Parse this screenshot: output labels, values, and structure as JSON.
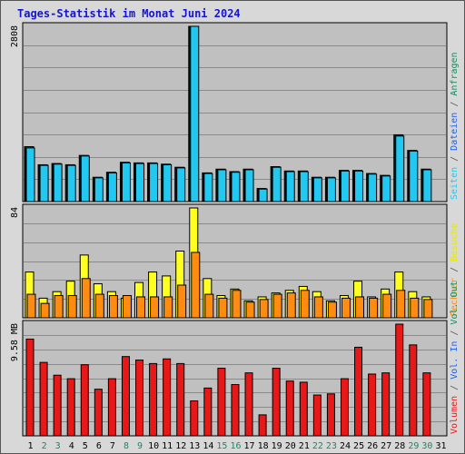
{
  "title": "Tages-Statistik im Monat Juni 2024",
  "chart_data": [
    {
      "type": "bar",
      "panel": "top",
      "ymax_label": "2808",
      "ylim": [
        0,
        2808
      ],
      "grid": true,
      "categories": [
        "1",
        "2",
        "3",
        "4",
        "5",
        "6",
        "7",
        "8",
        "9",
        "10",
        "11",
        "12",
        "13",
        "14",
        "15",
        "16",
        "17",
        "18",
        "19",
        "20",
        "21",
        "22",
        "23",
        "24",
        "25",
        "26",
        "27",
        "28",
        "29",
        "30",
        "31"
      ],
      "series": [
        {
          "name": "Anfragen",
          "color": "#1a8a5e",
          "values": [
            880,
            590,
            610,
            590,
            740,
            390,
            470,
            630,
            620,
            620,
            600,
            550,
            2808,
            460,
            520,
            480,
            520,
            210,
            560,
            490,
            490,
            390,
            390,
            500,
            500,
            450,
            420,
            1070,
            820,
            520,
            0
          ]
        },
        {
          "name": "Dateien",
          "color": "#1e5fe0",
          "values": [
            860,
            580,
            600,
            580,
            730,
            380,
            460,
            620,
            610,
            610,
            590,
            540,
            2808,
            450,
            510,
            470,
            510,
            200,
            550,
            480,
            480,
            380,
            380,
            490,
            490,
            440,
            410,
            1050,
            810,
            510,
            0
          ]
        },
        {
          "name": "Seiten",
          "color": "#22c8f0",
          "values": [
            860,
            580,
            600,
            580,
            730,
            380,
            460,
            620,
            610,
            610,
            590,
            540,
            2808,
            450,
            510,
            470,
            510,
            200,
            550,
            480,
            480,
            380,
            380,
            490,
            490,
            440,
            410,
            1050,
            810,
            510,
            0
          ]
        }
      ]
    },
    {
      "type": "bar",
      "panel": "middle",
      "ymax_label": "84",
      "ylim": [
        0,
        84
      ],
      "grid": true,
      "categories": [
        "1",
        "2",
        "3",
        "4",
        "5",
        "6",
        "7",
        "8",
        "9",
        "10",
        "11",
        "12",
        "13",
        "14",
        "15",
        "16",
        "17",
        "18",
        "19",
        "20",
        "21",
        "22",
        "23",
        "24",
        "25",
        "26",
        "27",
        "28",
        "29",
        "30",
        "31"
      ],
      "series": [
        {
          "name": "Besuche",
          "color": "#ffff20",
          "values": [
            35,
            15,
            20,
            28,
            48,
            26,
            20,
            15,
            27,
            35,
            32,
            51,
            84,
            30,
            17,
            22,
            13,
            16,
            19,
            21,
            24,
            20,
            13,
            17,
            28,
            16,
            22,
            35,
            20,
            16,
            0
          ]
        },
        {
          "name": "Rechner",
          "color": "#ff8c10",
          "values": [
            18,
            11,
            17,
            17,
            30,
            18,
            17,
            17,
            16,
            16,
            16,
            25,
            50,
            18,
            15,
            21,
            12,
            14,
            18,
            19,
            21,
            16,
            12,
            15,
            16,
            15,
            18,
            21,
            15,
            14,
            0
          ]
        }
      ]
    },
    {
      "type": "bar",
      "panel": "bottom",
      "ymax_label": "9.58 MB",
      "ylim": [
        0,
        9.58
      ],
      "grid": true,
      "categories": [
        "1",
        "2",
        "3",
        "4",
        "5",
        "6",
        "7",
        "8",
        "9",
        "10",
        "11",
        "12",
        "13",
        "14",
        "15",
        "16",
        "17",
        "18",
        "19",
        "20",
        "21",
        "22",
        "23",
        "24",
        "25",
        "26",
        "27",
        "28",
        "29",
        "30",
        "31"
      ],
      "series": [
        {
          "name": "Volumen",
          "color": "#e81818",
          "values": [
            8.3,
            6.3,
            5.2,
            4.9,
            6.1,
            4.0,
            4.9,
            6.8,
            6.5,
            6.2,
            6.6,
            6.2,
            3.0,
            4.1,
            5.8,
            4.4,
            5.4,
            1.8,
            5.8,
            4.7,
            4.6,
            3.5,
            3.6,
            4.9,
            7.6,
            5.3,
            5.4,
            9.58,
            7.8,
            5.4,
            0
          ]
        }
      ]
    }
  ],
  "x_labels": [
    "1",
    "2",
    "3",
    "4",
    "5",
    "6",
    "7",
    "8",
    "9",
    "10",
    "11",
    "12",
    "13",
    "14",
    "15",
    "16",
    "17",
    "18",
    "19",
    "20",
    "21",
    "22",
    "23",
    "24",
    "25",
    "26",
    "27",
    "28",
    "29",
    "30",
    "31"
  ],
  "x_label_colors": [
    "#000",
    "#1a8a5e",
    "#1a8a5e",
    "#000",
    "#000",
    "#000",
    "#000",
    "#1a8a5e",
    "#1a8a5e",
    "#000",
    "#000",
    "#000",
    "#000",
    "#000",
    "#1a8a5e",
    "#1a8a5e",
    "#000",
    "#000",
    "#000",
    "#000",
    "#000",
    "#1a8a5e",
    "#1a8a5e",
    "#000",
    "#000",
    "#000",
    "#000",
    "#000",
    "#1a8a5e",
    "#1a8a5e",
    "#000"
  ],
  "right_labels": {
    "top": [
      {
        "text": "Seiten",
        "color": "#22c8f0"
      },
      {
        "text": " / ",
        "color": "#555555"
      },
      {
        "text": "Dateien",
        "color": "#1e5fe0"
      },
      {
        "text": " / ",
        "color": "#555555"
      },
      {
        "text": "Anfragen",
        "color": "#1a8a5e"
      }
    ],
    "middle": [
      {
        "text": "Rechner",
        "color": "#ff8c10"
      },
      {
        "text": " / ",
        "color": "#555555"
      },
      {
        "text": "Besuche",
        "color": "#e8e800"
      }
    ],
    "bottom": [
      {
        "text": "Volumen",
        "color": "#e81818"
      },
      {
        "text": " / ",
        "color": "#555555"
      },
      {
        "text": "Vol. In",
        "color": "#1e5fe0"
      },
      {
        "text": " / ",
        "color": "#555555"
      },
      {
        "text": "Vol. Out",
        "color": "#1a8a5e"
      }
    ]
  }
}
